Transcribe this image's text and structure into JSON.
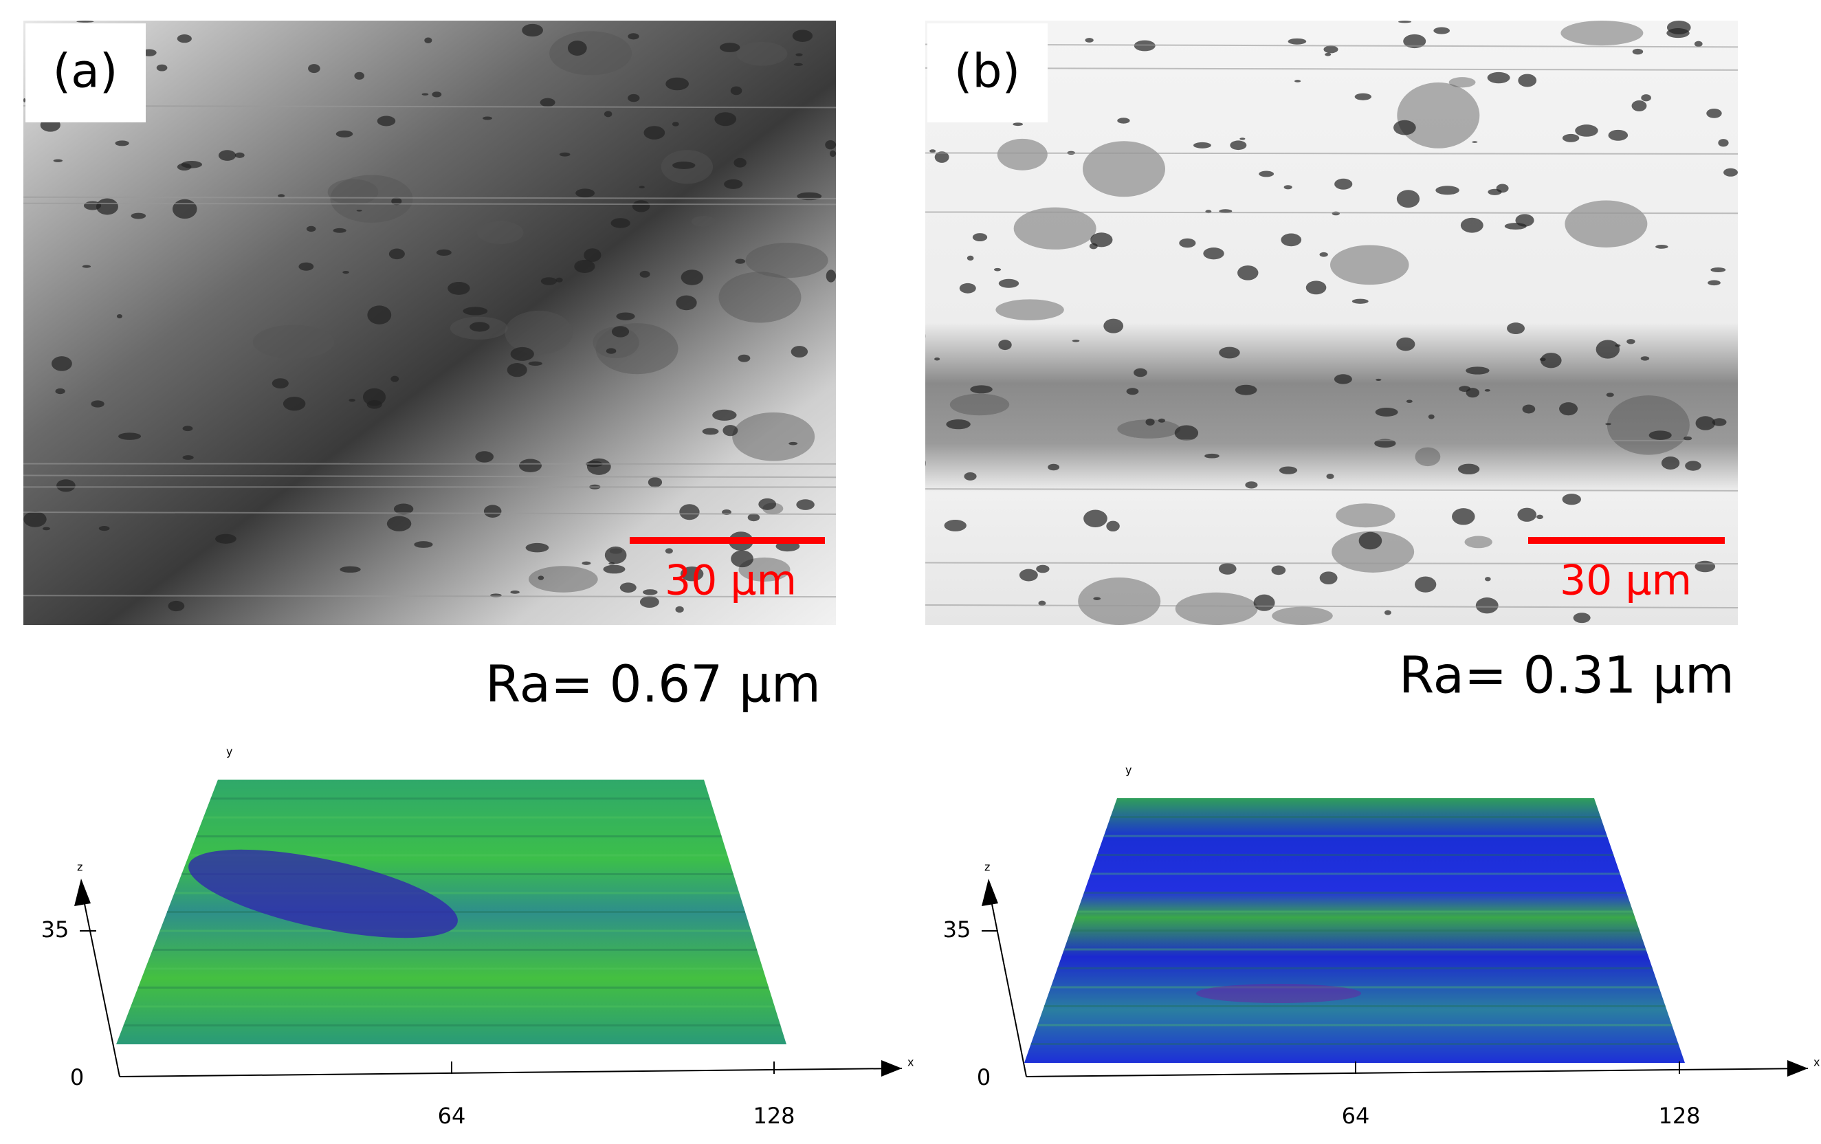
{
  "panels": [
    {
      "label": "(a)",
      "scale_bar": "30 μm",
      "roughness": "Ra= 0.67 μm",
      "axes": {
        "x": "x",
        "y": "y",
        "z": "z",
        "z_ticks": [
          "35",
          "0"
        ],
        "x_ticks": [
          "64",
          "128"
        ]
      }
    },
    {
      "label": "(b)",
      "scale_bar": "30 μm",
      "roughness": "Ra= 0.31 μm",
      "axes": {
        "x": "x",
        "y": "y",
        "z": "z",
        "z_ticks": [
          "35",
          "0"
        ],
        "x_ticks": [
          "64",
          "128"
        ]
      }
    }
  ]
}
